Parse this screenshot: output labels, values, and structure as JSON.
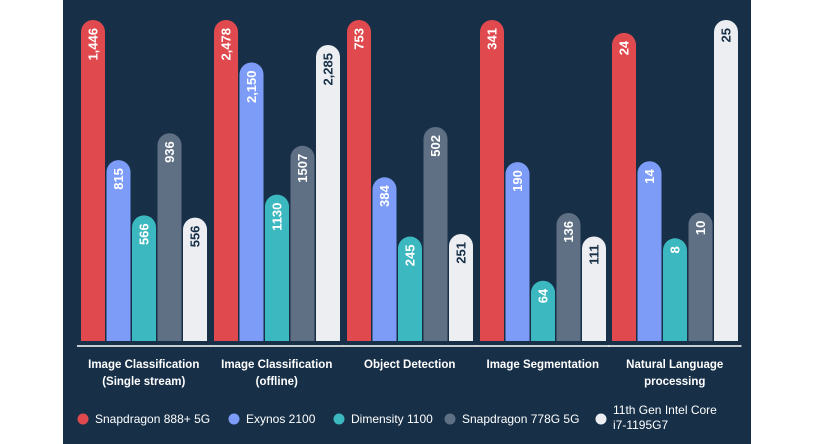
{
  "chart_data": {
    "type": "bar",
    "title": "",
    "xlabel": "",
    "ylabel": "",
    "grid": false,
    "legend_position": "bottom",
    "categories": [
      [
        "Image Classification",
        "(Single stream)"
      ],
      [
        "Image Classification",
        "(offline)"
      ],
      [
        "Object Detection"
      ],
      [
        "Image Segmentation"
      ],
      [
        "Natural  Language",
        "processing"
      ]
    ],
    "series": [
      {
        "name": "Snapdragon 888+ 5G",
        "color": "#e04a4f",
        "label_color": "#ffffff",
        "values": [
          1446,
          2478,
          753,
          341,
          24
        ],
        "labels": [
          "1,446",
          "2,478",
          "753",
          "341",
          "24"
        ]
      },
      {
        "name": "Exynos 2100",
        "color": "#7d9cf7",
        "label_color": "#ffffff",
        "values": [
          815,
          2150,
          384,
          190,
          14
        ],
        "labels": [
          "815",
          "2,150",
          "384",
          "190",
          "14"
        ]
      },
      {
        "name": "Dimensity 1100",
        "color": "#3cb8c0",
        "label_color": "#ffffff",
        "values": [
          566,
          1130,
          245,
          64,
          8
        ],
        "labels": [
          "566",
          "1130",
          "245",
          "64",
          "8"
        ]
      },
      {
        "name": "Snapdragon 778G 5G",
        "color": "#5f7085",
        "label_color": "#ffffff",
        "values": [
          936,
          1507,
          502,
          136,
          10
        ],
        "labels": [
          "936",
          "1507",
          "502",
          "136",
          "10"
        ]
      },
      {
        "name": [
          "11th Gen Intel Core",
          "i7-1195G7"
        ],
        "color": "#eceef2",
        "label_color": "#173048",
        "values": [
          556,
          2285,
          251,
          111,
          25
        ],
        "labels": [
          "556",
          "2,285",
          "251",
          "111",
          "25"
        ]
      }
    ]
  }
}
